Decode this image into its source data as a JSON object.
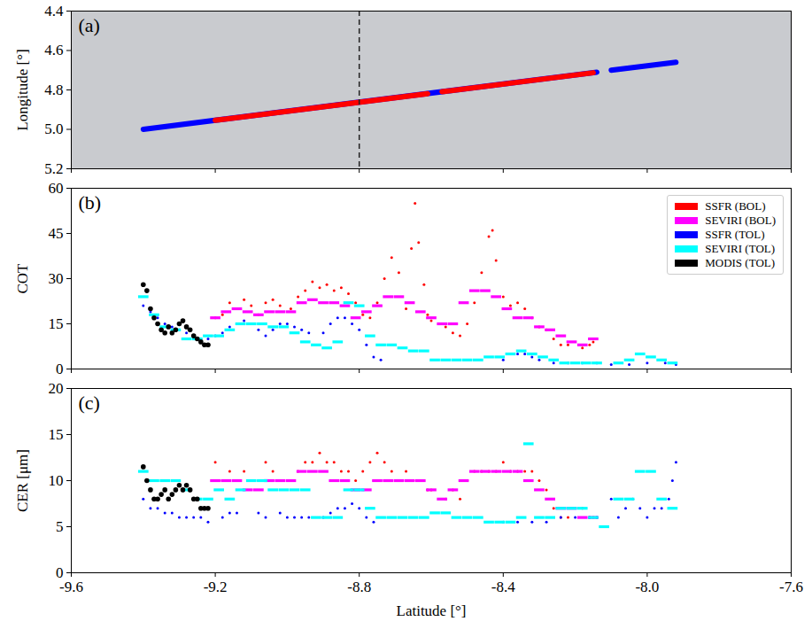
{
  "chart_data": [
    {
      "type": "line",
      "title": "(a)",
      "x_label": "Latitude [°]",
      "y_label": "Longitude [°]",
      "xlim": [
        -9.6,
        -7.6
      ],
      "xticks": [
        -9.6,
        -9.2,
        -8.8,
        -8.4,
        {
          "value": -8,
          "label": "-8.0"
        },
        -7.6
      ],
      "ylim": [
        5.2,
        4.4
      ],
      "yticks": [
        4.4,
        4.6,
        4.8,
        {
          "value": 5,
          "label": "5.0"
        },
        5.2
      ],
      "tick_labels": "y",
      "vline": {
        "x": -8.8,
        "line_style": "dashed",
        "color": "#222222"
      },
      "series": [
        {
          "name": "SSFR (TOL)",
          "color": "#0000ff",
          "x": [
            -9.4,
            -8.14,
            null,
            -8.1,
            -7.92
          ],
          "values": [
            5.0,
            4.71,
            null,
            4.7,
            4.66
          ]
        },
        {
          "name": "SSFR (BOL)",
          "color": "#ff0000",
          "x": [
            -9.2,
            -8.61,
            null,
            -8.57,
            -8.15
          ],
          "values": [
            4.954,
            4.819,
            null,
            4.809,
            4.713
          ]
        }
      ]
    },
    {
      "type": "scatter",
      "title": "(b)",
      "x_label": "Latitude [°]",
      "y_label": "COT",
      "xlim": [
        -9.6,
        -7.6
      ],
      "xticks": [
        -9.6,
        -9.2,
        -8.8,
        -8.4,
        {
          "value": -8,
          "label": "-8.0"
        },
        -7.6
      ],
      "ylim": [
        0,
        60
      ],
      "yticks": [
        0,
        15,
        30,
        45,
        60
      ],
      "tick_labels": "y",
      "legend": "upper right",
      "series": [
        {
          "name": "SSFR (BOL)",
          "color": "#ff0000",
          "marker": "dot",
          "x": [
            -9.2,
            -9.18,
            -9.16,
            -9.14,
            -9.12,
            -9.1,
            -9.08,
            -9.06,
            -9.04,
            -9.02,
            -8.99,
            -8.97,
            -8.95,
            -8.93,
            -8.91,
            -8.89,
            -8.87,
            -8.85,
            -8.83,
            -8.81,
            -8.79,
            -8.77,
            -8.75,
            -8.73,
            -8.71,
            -8.69,
            -8.67,
            -8.655,
            -8.645,
            -8.635,
            -8.62,
            -8.61,
            -8.6,
            -8.56,
            -8.54,
            -8.52,
            -8.5,
            -8.48,
            -8.46,
            -8.44,
            -8.43,
            -8.42,
            -8.4,
            -8.38,
            -8.36,
            -8.34,
            -8.32,
            -8.3,
            -8.28,
            -8.26,
            -8.24,
            -8.22,
            -8.18,
            -8.16,
            -8.15
          ],
          "values": [
            17,
            18,
            22,
            20,
            23,
            21,
            18,
            22,
            23,
            21,
            20,
            24,
            26,
            29,
            27,
            28,
            26,
            27,
            25,
            22,
            18,
            17,
            22,
            30,
            37,
            32,
            20,
            40,
            55,
            42,
            28,
            18,
            16,
            14,
            12,
            11,
            15,
            22,
            32,
            44,
            46,
            36,
            24,
            21,
            22,
            20,
            17,
            14,
            13,
            10,
            8,
            8,
            7,
            8,
            9
          ]
        },
        {
          "name": "SEVIRI (BOL)",
          "color": "#ff00ff",
          "marker": "dash",
          "x": [
            -9.2,
            -9.17,
            -9.14,
            -9.11,
            -9.08,
            -9.05,
            -9.02,
            -8.99,
            -8.96,
            -8.93,
            -8.9,
            -8.87,
            -8.84,
            -8.81,
            -8.78,
            -8.75,
            -8.72,
            -8.69,
            -8.66,
            -8.63,
            -8.6,
            -8.57,
            -8.54,
            -8.51,
            -8.48,
            -8.45,
            -8.42,
            -8.39,
            -8.36,
            -8.33,
            -8.3,
            -8.27,
            -8.24,
            -8.21,
            -8.18,
            -8.15
          ],
          "values": [
            17,
            19,
            20,
            19,
            18,
            19,
            19,
            19,
            22,
            23,
            22,
            22,
            21,
            17,
            19,
            21,
            24,
            24,
            22,
            19,
            17,
            15,
            15,
            22,
            26,
            26,
            24,
            20,
            17,
            17,
            14,
            13,
            11,
            9,
            8,
            10
          ]
        },
        {
          "name": "SSFR (TOL)",
          "color": "#0000ff",
          "marker": "dot",
          "x": [
            -9.4,
            -9.38,
            -9.36,
            -9.34,
            -9.32,
            -9.3,
            -9.28,
            -9.26,
            -9.24,
            -9.22,
            -9.2,
            -9.18,
            -9.16,
            -9.14,
            -9.12,
            -9.1,
            -9.08,
            -9.06,
            -9.04,
            -9.02,
            -9.0,
            -8.98,
            -8.96,
            -8.94,
            -8.9,
            -8.88,
            -8.86,
            -8.84,
            -8.82,
            -8.8,
            -8.78,
            -8.76,
            -8.74,
            -8.4,
            -8.36,
            -8.34,
            -8.32,
            -8.3,
            -8.26,
            -8.22,
            -8.18,
            -8.14,
            -8.1,
            -8.05,
            -8.0,
            -7.95,
            -7.92
          ],
          "values": [
            21,
            19,
            17,
            15,
            14,
            13,
            12,
            11,
            10,
            10,
            11,
            12,
            14,
            15,
            16,
            15,
            13,
            11,
            13,
            15,
            15,
            14,
            13,
            12,
            12,
            15,
            17,
            17,
            15,
            13,
            8,
            4,
            3,
            3,
            5,
            5,
            4,
            3,
            2,
            2,
            2,
            2,
            1.5,
            1.5,
            2,
            2,
            1.5
          ]
        },
        {
          "name": "SEVIRI (TOL)",
          "color": "#00ffff",
          "marker": "dash",
          "x": [
            -9.4,
            -9.37,
            -9.34,
            -9.31,
            -9.28,
            -9.25,
            -9.22,
            -9.19,
            -9.16,
            -9.13,
            -9.1,
            -9.07,
            -9.04,
            -9.01,
            -8.98,
            -8.95,
            -8.92,
            -8.89,
            -8.86,
            -8.83,
            -8.8,
            -8.77,
            -8.74,
            -8.71,
            -8.68,
            -8.65,
            -8.62,
            -8.59,
            -8.56,
            -8.53,
            -8.5,
            -8.47,
            -8.44,
            -8.41,
            -8.38,
            -8.35,
            -8.32,
            -8.29,
            -8.26,
            -8.23,
            -8.2,
            -8.17,
            -8.14,
            -8.08,
            -8.05,
            -8.02,
            -7.99,
            -7.96,
            -7.93
          ],
          "values": [
            24,
            18,
            14,
            13,
            10,
            10,
            11,
            11,
            13,
            15,
            15,
            15,
            14,
            14,
            12,
            9,
            8,
            7,
            9,
            22,
            21,
            11,
            8,
            8,
            7,
            6,
            6,
            3,
            3,
            3,
            3,
            3,
            4,
            4,
            5,
            6,
            5,
            4,
            3,
            2,
            2,
            2,
            2,
            2,
            3,
            5,
            4,
            3,
            2
          ]
        },
        {
          "name": "MODIS (TOL)",
          "color": "#000000",
          "marker": "circle",
          "x": [
            -9.4,
            -9.39,
            -9.38,
            -9.37,
            -9.36,
            -9.35,
            -9.34,
            -9.33,
            -9.32,
            -9.31,
            -9.3,
            -9.29,
            -9.28,
            -9.27,
            -9.26,
            -9.25,
            -9.24,
            -9.23,
            -9.22
          ],
          "values": [
            28,
            26,
            20,
            17,
            15,
            13,
            12,
            14,
            12,
            13,
            15,
            16,
            14,
            13,
            11,
            10,
            9,
            8,
            8
          ]
        }
      ]
    },
    {
      "type": "scatter",
      "title": "(c)",
      "x_label": "Latitude [°]",
      "y_label": "CER [μm]",
      "xlim": [
        -9.6,
        -7.6
      ],
      "xticks": [
        -9.6,
        -9.2,
        -8.8,
        -8.4,
        {
          "value": -8,
          "label": "-8.0"
        },
        -7.6
      ],
      "ylim": [
        0,
        20
      ],
      "yticks": [
        0,
        5,
        10,
        15,
        20
      ],
      "series": [
        {
          "name": "SSFR (BOL)",
          "color": "#ff0000",
          "marker": "dot",
          "x": [
            -9.2,
            -9.18,
            -9.16,
            -9.14,
            -9.12,
            -9.1,
            -9.08,
            -9.06,
            -9.04,
            -9.02,
            -8.99,
            -8.97,
            -8.95,
            -8.93,
            -8.91,
            -8.89,
            -8.87,
            -8.85,
            -8.83,
            -8.81,
            -8.79,
            -8.77,
            -8.75,
            -8.73,
            -8.71,
            -8.69,
            -8.67,
            -8.65,
            -8.63,
            -8.61,
            -8.6,
            -8.56,
            -8.54,
            -8.52,
            -8.5,
            -8.48,
            -8.46,
            -8.44,
            -8.42,
            -8.4,
            -8.38,
            -8.36,
            -8.34,
            -8.32,
            -8.3,
            -8.28,
            -8.26,
            -8.24,
            -8.22,
            -8.18,
            -8.16,
            -8.15
          ],
          "values": [
            12,
            10,
            11,
            10,
            11,
            10,
            10,
            12,
            11,
            10,
            10,
            11,
            12,
            12,
            13,
            12,
            12,
            11,
            11,
            10,
            11,
            12,
            13,
            12,
            11,
            10,
            11,
            10,
            10,
            9,
            9,
            8,
            9,
            8,
            10,
            11,
            11,
            11,
            11,
            12,
            11,
            11,
            11,
            11,
            10,
            9,
            7,
            6,
            6,
            7,
            6,
            6
          ]
        },
        {
          "name": "SEVIRI (BOL)",
          "color": "#ff00ff",
          "marker": "dash",
          "x": [
            -9.2,
            -9.17,
            -9.14,
            -9.11,
            -9.08,
            -9.05,
            -9.02,
            -8.99,
            -8.96,
            -8.93,
            -8.9,
            -8.87,
            -8.84,
            -8.81,
            -8.78,
            -8.75,
            -8.72,
            -8.69,
            -8.66,
            -8.63,
            -8.6,
            -8.57,
            -8.54,
            -8.51,
            -8.48,
            -8.45,
            -8.42,
            -8.39,
            -8.36,
            -8.33,
            -8.3,
            -8.27,
            -8.24,
            -8.21,
            -8.18,
            -8.15
          ],
          "values": [
            10,
            10,
            10,
            9,
            9,
            10,
            10,
            10,
            11,
            11,
            11,
            10,
            10,
            9,
            9,
            10,
            10,
            10,
            10,
            10,
            9,
            8,
            9,
            10,
            11,
            11,
            11,
            11,
            11,
            10,
            9,
            8,
            7,
            7,
            6,
            6
          ]
        },
        {
          "name": "SSFR (TOL)",
          "color": "#0000ff",
          "marker": "dot",
          "x": [
            -9.4,
            -9.38,
            -9.36,
            -9.34,
            -9.32,
            -9.3,
            -9.28,
            -9.26,
            -9.24,
            -9.22,
            -9.18,
            -9.16,
            -9.14,
            -9.08,
            -9.06,
            -9.02,
            -9.0,
            -8.98,
            -8.96,
            -8.94,
            -8.9,
            -8.88,
            -8.86,
            -8.84,
            -8.82,
            -8.8,
            -8.78,
            -8.76,
            -8.4,
            -8.36,
            -8.32,
            -8.28,
            -8.24,
            -8.2,
            -8.16,
            -8.14,
            -8.1,
            -8.08,
            -8.06,
            -8.04,
            -8.02,
            -8.0,
            -7.98,
            -7.96,
            -7.94,
            -7.93,
            -7.92
          ],
          "values": [
            8,
            7,
            7,
            6.5,
            6.5,
            6,
            6,
            6,
            6,
            5.5,
            6,
            6.5,
            6.5,
            6.5,
            6,
            6.5,
            6,
            6,
            6,
            6,
            6,
            6.5,
            7,
            7,
            7.5,
            7,
            6,
            5.5,
            5.5,
            5.5,
            5.5,
            5.5,
            6,
            6,
            6,
            6,
            8,
            6,
            7,
            8,
            7,
            6,
            7,
            7,
            8,
            10,
            12
          ]
        },
        {
          "name": "SEVIRI (TOL)",
          "color": "#00ffff",
          "marker": "dash",
          "x": [
            -9.4,
            -9.37,
            -9.34,
            -9.31,
            -9.28,
            -9.25,
            -9.22,
            -9.19,
            -9.16,
            -9.13,
            -9.1,
            -9.07,
            -9.04,
            -9.01,
            -8.98,
            -8.95,
            -8.92,
            -8.89,
            -8.86,
            -8.83,
            -8.8,
            -8.77,
            -8.74,
            -8.71,
            -8.68,
            -8.65,
            -8.62,
            -8.59,
            -8.56,
            -8.53,
            -8.5,
            -8.47,
            -8.44,
            -8.41,
            -8.38,
            -8.35,
            -8.33,
            -8.3,
            -8.27,
            -8.24,
            -8.21,
            -8.18,
            -8.15,
            -8.12,
            -8.08,
            -8.05,
            -8.02,
            -7.99,
            -7.96,
            -7.93
          ],
          "values": [
            11,
            10,
            10,
            10,
            9,
            8,
            8,
            9,
            8,
            9,
            10,
            10,
            9,
            9,
            9,
            9,
            6,
            6,
            6,
            9,
            9,
            7,
            6,
            6,
            6,
            6,
            6,
            6.5,
            6.5,
            6,
            6,
            6,
            5.5,
            5.5,
            5.5,
            6,
            14,
            6,
            6,
            7,
            7,
            7,
            6,
            5,
            8,
            8,
            11,
            11,
            8,
            7
          ]
        },
        {
          "name": "MODIS (TOL)",
          "color": "#000000",
          "marker": "circle",
          "x": [
            -9.4,
            -9.39,
            -9.38,
            -9.37,
            -9.36,
            -9.35,
            -9.34,
            -9.33,
            -9.32,
            -9.31,
            -9.3,
            -9.29,
            -9.28,
            -9.27,
            -9.26,
            -9.25,
            -9.24,
            -9.23,
            -9.22
          ],
          "values": [
            11.5,
            10,
            9,
            8,
            8,
            8.5,
            9,
            8,
            8.5,
            9,
            9.5,
            9,
            9.5,
            9,
            8,
            8,
            7,
            7,
            7
          ]
        }
      ]
    }
  ]
}
